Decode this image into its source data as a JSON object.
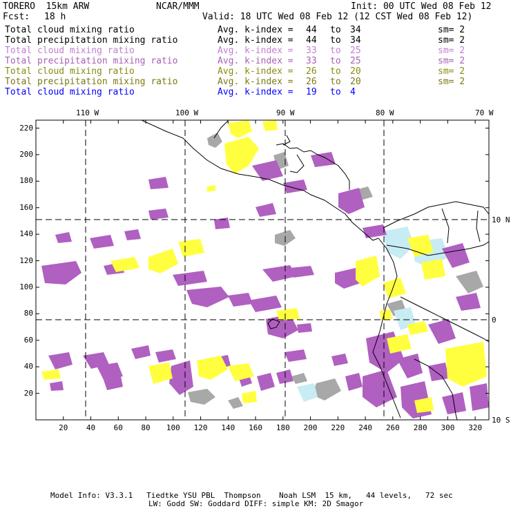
{
  "header": {
    "model": "TORERO  15km ARW",
    "center": "NCAR/MMM",
    "init": "Init: 00 UTC Wed 08 Feb 12",
    "fcst_label": "Fcst:",
    "fcst_value": "18 h",
    "valid": "Valid: 18 UTC Wed 08 Feb 12 (12 CST Wed 08 Feb 12)"
  },
  "legend": [
    {
      "field": "Total cloud mixing ratio",
      "kidx": "Avg. k-index =",
      "from": "44",
      "to_word": "to",
      "to": "34",
      "sm": "sm= 2",
      "color": "#000000"
    },
    {
      "field": "Total precipitation mixing ratio",
      "kidx": "Avg. k-index =",
      "from": "44",
      "to_word": "to",
      "to": "34",
      "sm": "sm= 2",
      "color": "#000000"
    },
    {
      "field": "Total cloud mixing ratio",
      "kidx": "Avg. k-index =",
      "from": "33",
      "to_word": "to",
      "to": "25",
      "sm": "sm= 2",
      "color": "#c080d0"
    },
    {
      "field": "Total precipitation mixing ratio",
      "kidx": "Avg. k-index =",
      "from": "33",
      "to_word": "to",
      "to": "25",
      "sm": "sm= 2",
      "color": "#a860b8"
    },
    {
      "field": "Total cloud mixing ratio",
      "kidx": "Avg. k-index =",
      "from": "26",
      "to_word": "to",
      "to": "20",
      "sm": "sm= 2",
      "color": "#8a8a10"
    },
    {
      "field": "Total precipitation mixing ratio",
      "kidx": "Avg. k-index =",
      "from": "26",
      "to_word": "to",
      "to": "20",
      "sm": "sm= 2",
      "color": "#7a7a10"
    },
    {
      "field": "Total cloud mixing ratio",
      "kidx": "Avg. k-index =",
      "from": "19",
      "to_word": "to",
      "to": "4",
      "sm": "",
      "color": "#0000ff"
    }
  ],
  "map": {
    "lon_labels": [
      "110 W",
      "100 W",
      "90 W",
      "80 W",
      "70 W"
    ],
    "lat_labels": [
      "10 N",
      "0",
      "10 S"
    ],
    "x_ticks": [
      "20",
      "40",
      "60",
      "80",
      "100",
      "120",
      "140",
      "160",
      "180",
      "200",
      "220",
      "240",
      "260",
      "280",
      "300",
      "320"
    ],
    "y_ticks": [
      "220",
      "200",
      "180",
      "160",
      "140",
      "120",
      "100",
      "80",
      "60",
      "40",
      "20"
    ],
    "colors": {
      "frame": "#000000",
      "grid": "#000000",
      "gray": "#a8a8a8",
      "purple": "#b060c0",
      "yellow": "#ffff40",
      "lightblue": "#c8ecf4"
    }
  },
  "footer": {
    "line1": "Model Info: V3.3.1   Tiedtke YSU PBL  Thompson    Noah LSM  15 km,   44 levels,   72 sec",
    "line2": "LW: Godd SW: Goddard DIFF: simple KM: 2D Smagor"
  }
}
